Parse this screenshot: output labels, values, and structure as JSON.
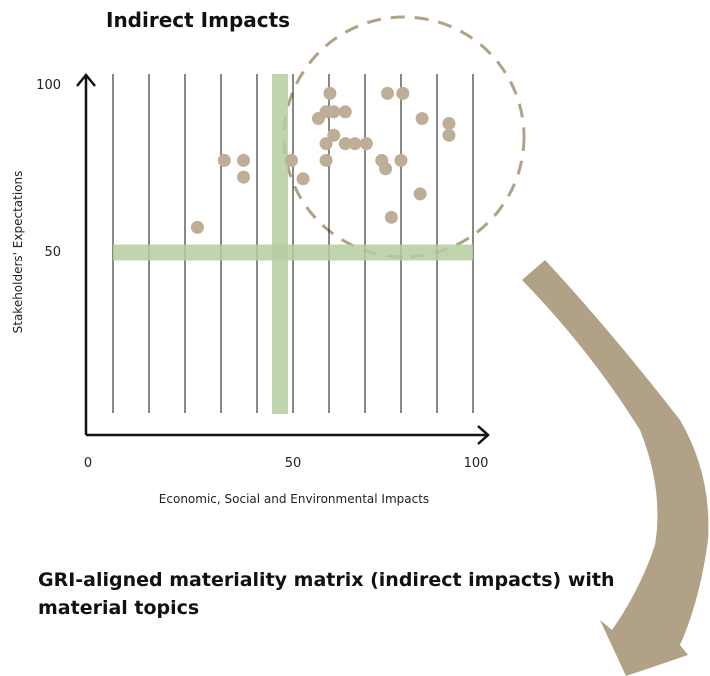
{
  "chart_data": {
    "type": "scatter",
    "title": "Indirect Impacts",
    "xlabel": "Economic, Social and Environmental Impacts",
    "ylabel": "Stakeholders' Expectations",
    "xlim": [
      0,
      100
    ],
    "ylim": [
      0,
      100
    ],
    "x_ticks": [
      "0",
      "50",
      "100"
    ],
    "y_ticks": [
      "50",
      "100"
    ],
    "thresholds": {
      "x": 50,
      "y": 50
    },
    "grid": "vertical",
    "colors": {
      "points": "#bfae97",
      "threshold": "#b5cca0",
      "arrow": "#b1a187",
      "axis": "#111111"
    },
    "points": [
      {
        "x": 28.5,
        "y": 57.5
      },
      {
        "x": 35.5,
        "y": 77.5
      },
      {
        "x": 40.5,
        "y": 77.5
      },
      {
        "x": 40.5,
        "y": 72.5
      },
      {
        "x": 53,
        "y": 77.5
      },
      {
        "x": 56,
        "y": 72
      },
      {
        "x": 60,
        "y": 90
      },
      {
        "x": 62,
        "y": 92
      },
      {
        "x": 62,
        "y": 82.5
      },
      {
        "x": 62,
        "y": 77.5
      },
      {
        "x": 63,
        "y": 97.5
      },
      {
        "x": 64,
        "y": 92
      },
      {
        "x": 64,
        "y": 85
      },
      {
        "x": 67,
        "y": 92
      },
      {
        "x": 67,
        "y": 82.5
      },
      {
        "x": 69.5,
        "y": 82.5
      },
      {
        "x": 72.5,
        "y": 82.5
      },
      {
        "x": 76.5,
        "y": 77.5
      },
      {
        "x": 77.5,
        "y": 75
      },
      {
        "x": 78,
        "y": 97.5
      },
      {
        "x": 79,
        "y": 60.5
      },
      {
        "x": 81.5,
        "y": 77.5
      },
      {
        "x": 82,
        "y": 97.5
      },
      {
        "x": 86.5,
        "y": 67.5
      },
      {
        "x": 87,
        "y": 90
      },
      {
        "x": 94,
        "y": 88.5
      },
      {
        "x": 94,
        "y": 85
      }
    ]
  },
  "caption": "GRI-aligned materiality matrix (indirect impacts) with material topics"
}
